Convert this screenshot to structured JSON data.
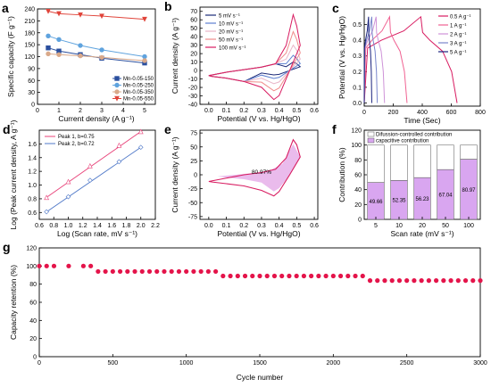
{
  "chart_data": [
    {
      "panel": "a",
      "type": "line",
      "xlabel": "Current density (A g⁻¹)",
      "ylabel": "Specific capacity (F g⁻¹)",
      "xlim": [
        0,
        5.5
      ],
      "ylim": [
        0,
        240
      ],
      "xticks": [
        "0",
        "1",
        "2",
        "3",
        "4",
        "5"
      ],
      "yticks": [
        "0",
        "30",
        "60",
        "90",
        "120",
        "150",
        "180",
        "210",
        "240"
      ],
      "x": [
        0.5,
        1,
        2,
        3,
        5
      ],
      "series": [
        {
          "name": "Mn-0.05-150",
          "values": [
            142,
            134,
            125,
            116,
            104
          ],
          "color": "#2a4f9e",
          "marker": "square"
        },
        {
          "name": "Mn-0.05-250",
          "values": [
            172,
            163,
            148,
            137,
            120
          ],
          "color": "#5fa3de",
          "marker": "circle"
        },
        {
          "name": "Mn-0.05-350",
          "values": [
            127,
            125,
            122,
            118,
            110
          ],
          "color": "#d9a98a",
          "marker": "circle"
        },
        {
          "name": "Mn-0.05-550",
          "values": [
            234,
            228,
            225,
            222,
            214
          ],
          "color": "#e0443a",
          "marker": "triangle-down"
        }
      ]
    },
    {
      "panel": "b",
      "type": "line",
      "xlabel": "Potential (V vs. Hg/HgO)",
      "ylabel": "Current density (A g⁻¹)",
      "xlim": [
        -0.05,
        0.62
      ],
      "ylim": [
        -40,
        75
      ],
      "xticks": [
        "0.0",
        "0.1",
        "0.2",
        "0.3",
        "0.4",
        "0.5",
        "0.6"
      ],
      "yticks": [
        "-40",
        "-30",
        "-20",
        "-10",
        "0",
        "10",
        "20",
        "30",
        "40",
        "50",
        "60",
        "70"
      ],
      "series": [
        {
          "name": "5 mV s⁻¹",
          "color": "#1c2a78",
          "peak": 10
        },
        {
          "name": "10 mV s⁻¹",
          "color": "#5d7fd0",
          "peak": 18
        },
        {
          "name": "20 mV s⁻¹",
          "color": "#e9b5c8",
          "peak": 30
        },
        {
          "name": "50 mV s⁻¹",
          "color": "#f08c8c",
          "peak": 46
        },
        {
          "name": "100 mV s⁻¹",
          "color": "#d81b60",
          "peak": 66
        }
      ]
    },
    {
      "panel": "c",
      "type": "line",
      "xlabel": "Time (Sec)",
      "ylabel": "Potential (V vs. Hg/HgO)",
      "xlim": [
        0,
        800
      ],
      "ylim": [
        -0.02,
        0.6
      ],
      "xticks": [
        "0",
        "200",
        "400",
        "600",
        "800"
      ],
      "yticks": [
        "0.0",
        "0.1",
        "0.2",
        "0.3",
        "0.4",
        "0.5"
      ],
      "series": [
        {
          "name": "0.5 A g⁻¹",
          "color": "#d81b60",
          "charge_end": 390,
          "discharge_end": 640
        },
        {
          "name": "1 A g⁻¹",
          "color": "#f06292",
          "charge_end": 175,
          "discharge_end": 295
        },
        {
          "name": "2 A g⁻¹",
          "color": "#ce93d8",
          "charge_end": 82,
          "discharge_end": 140
        },
        {
          "name": "3 A g⁻¹",
          "color": "#7986cb",
          "charge_end": 52,
          "discharge_end": 90
        },
        {
          "name": "5 A g⁻¹",
          "color": "#1a237e",
          "charge_end": 30,
          "discharge_end": 52
        }
      ]
    },
    {
      "panel": "d",
      "type": "scatter",
      "xlabel": "Log (Scan rate, mV s⁻¹)",
      "ylabel": "Log (Peak current density, A g⁻¹)",
      "xlim": [
        0.6,
        2.2
      ],
      "ylim": [
        0.5,
        1.8
      ],
      "xticks": [
        "0.6",
        "0.8",
        "1.0",
        "1.2",
        "1.4",
        "1.6",
        "1.8",
        "2.0",
        "2.2"
      ],
      "yticks": [
        "0.6",
        "0.8",
        "1.0",
        "1.2",
        "1.4",
        "1.6"
      ],
      "x": [
        0.7,
        1.0,
        1.3,
        1.7,
        2.0
      ],
      "series": [
        {
          "name": "Peak 1, b=0.75",
          "values": [
            0.82,
            1.05,
            1.28,
            1.58,
            1.78
          ],
          "color": "#e8437a",
          "marker": "triangle"
        },
        {
          "name": "Peak 2, b=0.72",
          "values": [
            0.61,
            0.83,
            1.07,
            1.34,
            1.55
          ],
          "color": "#4f78c8",
          "marker": "diamond"
        }
      ]
    },
    {
      "panel": "e",
      "type": "area",
      "xlabel": "Potential (V vs. Hg/HgO)",
      "ylabel": "Current density (A g⁻¹)",
      "xlim": [
        -0.05,
        0.62
      ],
      "ylim": [
        -80,
        80
      ],
      "xticks": [
        "0.0",
        "0.1",
        "0.2",
        "0.3",
        "0.4",
        "0.5",
        "0.6"
      ],
      "yticks": [
        "-75",
        "-50",
        "-25",
        "0",
        "25",
        "50",
        "75"
      ],
      "annotation": "80.97%",
      "colors": {
        "line": "#d81b60",
        "fill": "#e8b4ea"
      }
    },
    {
      "panel": "f",
      "type": "bar",
      "xlabel": "Scan rate (mV s⁻¹)",
      "ylabel": "Contribution (%)",
      "ylim": [
        0,
        120
      ],
      "yticks": [
        "0",
        "20",
        "40",
        "60",
        "80",
        "100",
        "120"
      ],
      "categories": [
        "5",
        "10",
        "20",
        "50",
        "100"
      ],
      "series": [
        {
          "name": "capacitive contribution",
          "values": [
            49.66,
            52.35,
            56.23,
            67.04,
            80.97
          ],
          "color": "#d9a6f0"
        },
        {
          "name": "Difussion-controlled contribution",
          "values": [
            50.34,
            47.65,
            43.77,
            32.96,
            19.03
          ],
          "color": "#ffffff"
        }
      ],
      "data_labels": [
        "49.66",
        "52.35",
        "56.23",
        "67.04",
        "80.97"
      ]
    },
    {
      "panel": "g",
      "type": "scatter",
      "xlabel": "Cycle number",
      "ylabel": "Capacity retention (%)",
      "xlim": [
        0,
        3000
      ],
      "ylim": [
        0,
        120
      ],
      "xticks": [
        "0",
        "500",
        "1000",
        "1500",
        "2000",
        "2500",
        "3000"
      ],
      "yticks": [
        "0",
        "20",
        "40",
        "60",
        "80",
        "100",
        "120"
      ],
      "color": "#e4144a",
      "segments": [
        {
          "x": [
            0,
            50,
            100,
            200,
            300,
            350
          ],
          "y": 100
        },
        {
          "x_start": 400,
          "x_end": 1200,
          "step": 50,
          "y": 94
        },
        {
          "x_start": 1250,
          "x_end": 2150,
          "step": 50,
          "y": 89
        },
        {
          "x": [
            2200
          ],
          "y": 89
        },
        {
          "x_start": 2250,
          "x_end": 3000,
          "step": 50,
          "y": 84
        }
      ]
    }
  ]
}
